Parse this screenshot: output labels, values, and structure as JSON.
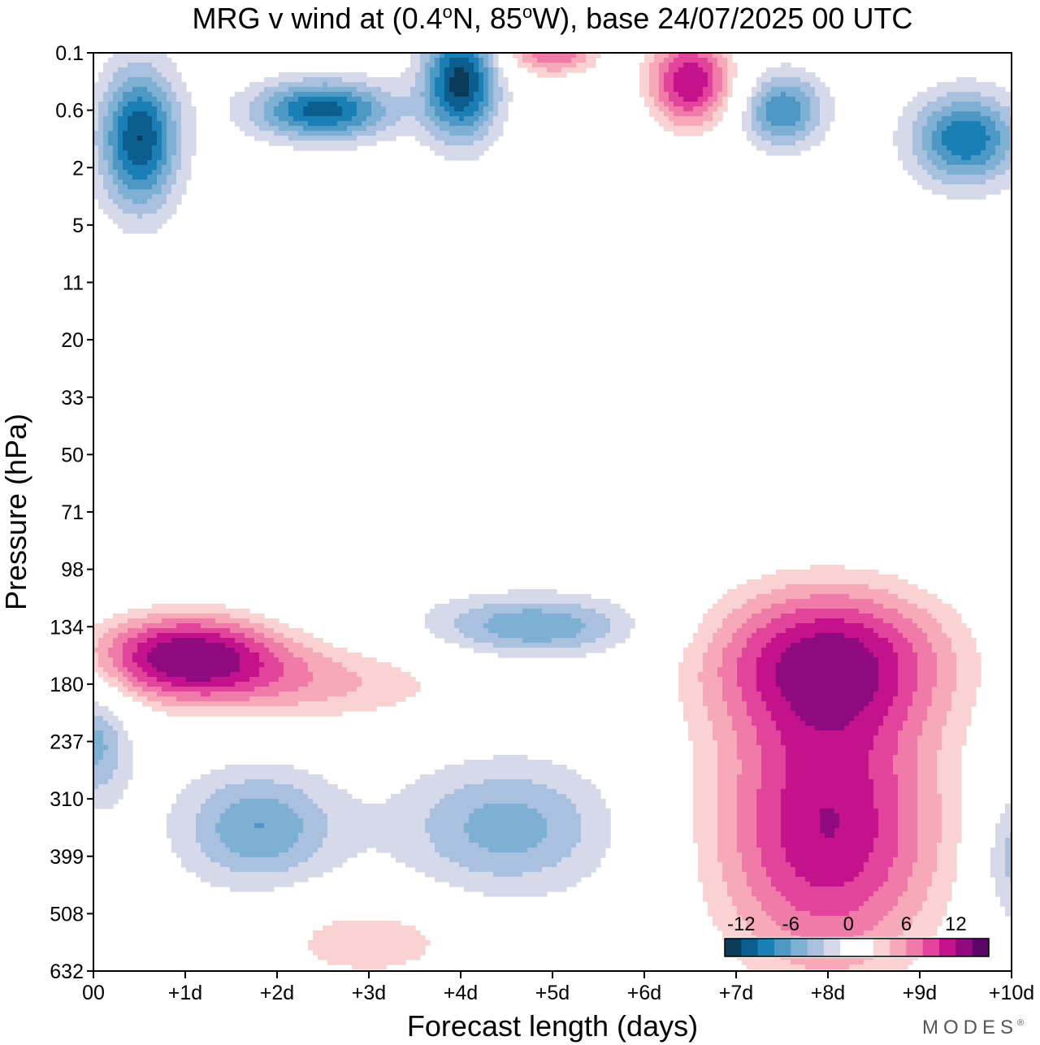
{
  "chart_data": {
    "type": "contourf",
    "title": "MRG v wind at (0.4°N, 85°W),  base 24/07/2025  00 UTC",
    "title_parts": {
      "pre": "MRG v wind at (0.4",
      "deg1": "o",
      "mid": "N, 85",
      "deg2": "o",
      "post": "W),  base 24/07/2025  00 UTC"
    },
    "xlabel": "Forecast length (days)",
    "ylabel": "Pressure (hPa)",
    "x_ticks": [
      "00",
      "+1d",
      "+2d",
      "+3d",
      "+4d",
      "+5d",
      "+6d",
      "+7d",
      "+8d",
      "+9d",
      "+10d"
    ],
    "x_range_days": [
      0,
      10
    ],
    "y_ticks": [
      "0.1",
      "0.6",
      "2",
      "5",
      "11",
      "20",
      "33",
      "50",
      "71",
      "98",
      "134",
      "180",
      "237",
      "310",
      "399",
      "508",
      "632"
    ],
    "colorbar": {
      "labels": [
        "-12",
        "-6",
        "0",
        "6",
        "12"
      ],
      "levels": [
        -14,
        -12,
        -10,
        -8,
        -6,
        -4,
        -2,
        2,
        4,
        6,
        8,
        10,
        12,
        14
      ],
      "colors": [
        "#0a3c5a",
        "#0b5e8e",
        "#1a7fb5",
        "#4e98c6",
        "#7eb0d4",
        "#a9c0de",
        "#d6d9ea",
        "#ffffff",
        "#ffffff",
        "#fbd2d2",
        "#f7a9b8",
        "#f07aa8",
        "#e2449b",
        "#c4128c",
        "#8e0a7e",
        "#5c0568"
      ]
    },
    "features": [
      {
        "day": 0.5,
        "level": "0.6-2",
        "v_ms": -14,
        "sign": "negative"
      },
      {
        "day": 2.5,
        "level": "0.6",
        "v_ms": -13,
        "sign": "negative"
      },
      {
        "day": 4.0,
        "level": "0.1-0.6",
        "v_ms": -15,
        "sign": "negative"
      },
      {
        "day": 7.5,
        "level": "0.6",
        "v_ms": -10,
        "sign": "negative"
      },
      {
        "day": 9.5,
        "level": "0.6-2",
        "v_ms": -12,
        "sign": "negative"
      },
      {
        "day": 6.5,
        "level": "0.1-0.6",
        "v_ms": 14,
        "sign": "positive"
      },
      {
        "day": 5.0,
        "level": "0.1",
        "v_ms": 10,
        "sign": "positive"
      },
      {
        "day": 1.0,
        "level": "134-180",
        "v_ms": 15,
        "sign": "positive"
      },
      {
        "day": 2.5,
        "level": "180",
        "v_ms": 6,
        "sign": "positive"
      },
      {
        "day": 4.8,
        "level": "134",
        "v_ms": -8,
        "sign": "negative"
      },
      {
        "day": 8.0,
        "level": "134-180",
        "v_ms": 12,
        "sign": "positive"
      },
      {
        "day": 8.0,
        "level": "310-399",
        "v_ms": 14,
        "sign": "positive"
      },
      {
        "day": 1.8,
        "level": "310-399",
        "v_ms": -8,
        "sign": "negative"
      },
      {
        "day": 4.5,
        "level": "310-399",
        "v_ms": -7,
        "sign": "negative"
      },
      {
        "day": 3.0,
        "level": "508-632",
        "v_ms": 6,
        "sign": "positive"
      },
      {
        "day": 0.0,
        "level": "237",
        "v_ms": -7,
        "sign": "negative"
      },
      {
        "day": 10.0,
        "level": "399",
        "v_ms": -6,
        "sign": "negative"
      }
    ]
  },
  "brand": "MODES",
  "brand_mark": "®"
}
